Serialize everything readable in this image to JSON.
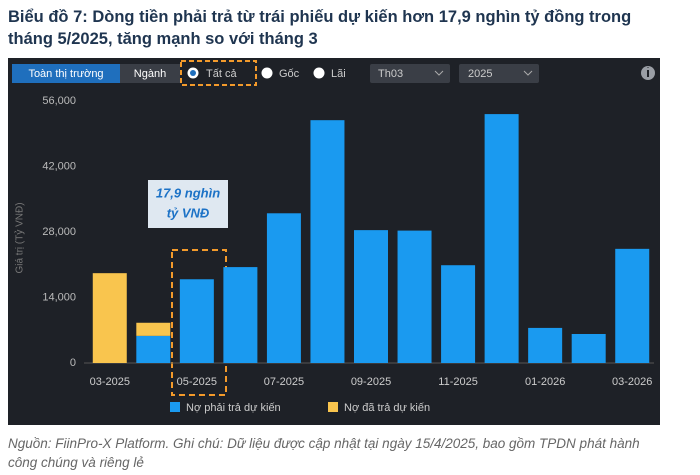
{
  "chart_data": {
    "type": "stacked_bar",
    "title": "Biểu đồ 7: Dòng tiền phải trả từ trái phiếu dự kiến hơn 17,9 nghìn tỷ đồng trong tháng 5/2025, tăng mạnh so với tháng 3",
    "y_label": "Giá trị (Tỷ VNĐ)",
    "categories": [
      "03-2025",
      null,
      "05-2025",
      null,
      "07-2025",
      null,
      "09-2025",
      null,
      "11-2025",
      null,
      "01-2026",
      null,
      "03-2026"
    ],
    "series": [
      {
        "name": "Nợ phải trả dự kiến",
        "color": "#1a9af0",
        "values": [
          null,
          5800,
          17900,
          20500,
          32000,
          51900,
          28400,
          28300,
          20900,
          53200,
          7500,
          6200,
          24400
        ]
      },
      {
        "name": "Nợ đã trả dự kiến",
        "color": "#f9c54e",
        "values": [
          19200,
          2800,
          null,
          null,
          null,
          null,
          null,
          null,
          null,
          null,
          null,
          null,
          null
        ]
      }
    ],
    "ylim": [
      0,
      56000
    ],
    "yticks": [
      {
        "value": 0,
        "label": "0"
      },
      {
        "value": 14000,
        "label": "14,000"
      },
      {
        "value": 28000,
        "label": "28,000"
      },
      {
        "value": 42000,
        "label": "42,000"
      },
      {
        "value": 56000,
        "label": "56,000"
      }
    ],
    "grid": false,
    "annotation": [
      "17,9 nghìn",
      "tỷ VNĐ"
    ]
  },
  "toolbar": {
    "tabs": [
      "Toàn thị trường",
      "Ngành"
    ],
    "radios": [
      "Tất cả",
      "Gốc",
      "Lãi"
    ],
    "selects": [
      "Th03",
      "2025"
    ]
  },
  "source": "Nguồn: FiinPro-X Platform. Ghi chú: Dữ liệu được cập nhật tại ngày 15/4/2025, bao gồm TPDN phát hành công chúng và riêng lẻ"
}
